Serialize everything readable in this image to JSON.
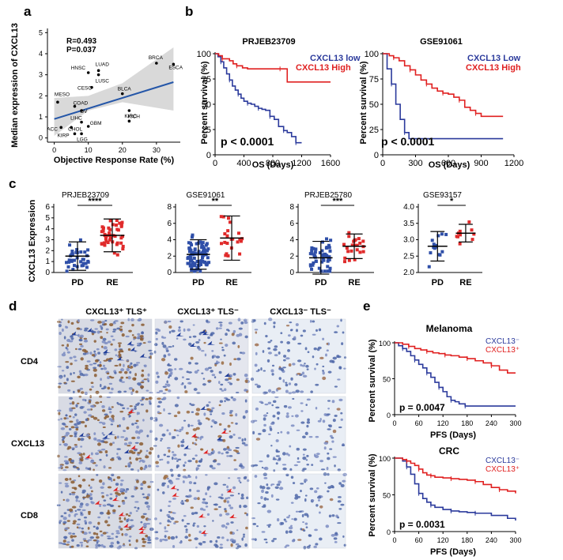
{
  "panel_labels": {
    "a": "a",
    "b": "b",
    "c": "c",
    "d": "d",
    "e": "e"
  },
  "colors": {
    "blue": "#2b3a9c",
    "red": "#e02020",
    "band": "#d9d9d9",
    "fit": "#2456a8",
    "rowblue": "#2f4fa8",
    "rowred": "#e02b2b"
  },
  "panel_a": {
    "stats_r": "R=0.493",
    "stats_p": "P=0.037",
    "xlabel": "Objective Response Rate (%)",
    "ylabel": "Median expression of CXCL13",
    "xticks": [
      "0",
      "10",
      "20",
      "30"
    ],
    "yticks": [
      "0",
      "1",
      "2",
      "3",
      "4",
      "5"
    ]
  },
  "panel_b": {
    "ylabel": "Percent survival (%)",
    "xlabel": "OS (Days)",
    "left": {
      "title": "PRJEB23709",
      "legend_low": "CXCL13 low",
      "legend_high": "CXCL13 High",
      "pval": "p < 0.0001",
      "xticks": [
        "0",
        "400",
        "800",
        "1200",
        "1600"
      ],
      "yticks": [
        "0",
        "25",
        "50",
        "75",
        "100"
      ]
    },
    "right": {
      "title": "GSE91061",
      "legend_low": "CXCL13 Low",
      "legend_high": "CXCL13 High",
      "pval": "p < 0.0001",
      "xticks": [
        "0",
        "300",
        "600",
        "900",
        "1200"
      ],
      "yticks": [
        "0",
        "25",
        "50",
        "75",
        "100"
      ]
    }
  },
  "panel_c": {
    "ylabel": "CXCL13 Expression",
    "plots": [
      {
        "title": "PRJEB23709",
        "sig": "****",
        "groups": [
          "PD",
          "RE"
        ],
        "yticks": [
          "0",
          "1",
          "2",
          "3",
          "4",
          "5",
          "6"
        ]
      },
      {
        "title": "GSE91061",
        "sig": "**",
        "groups": [
          "PD",
          "RE"
        ],
        "yticks": [
          "0",
          "2",
          "4",
          "6",
          "8"
        ]
      },
      {
        "title": "PRJEB25780",
        "sig": "***",
        "groups": [
          "PD",
          "RE"
        ],
        "yticks": [
          "0",
          "2",
          "4",
          "6",
          "8"
        ]
      },
      {
        "title": "GSE93157",
        "sig": "*",
        "groups": [
          "PD",
          "RE"
        ],
        "yticks": [
          "2.0",
          "2.5",
          "3.0",
          "3.5",
          "4.0"
        ]
      }
    ]
  },
  "panel_d": {
    "col_headers": [
      "CXCL13⁺ TLS⁺",
      "CXCL13⁺ TLS⁻",
      "CXCL13⁻ TLS⁻"
    ],
    "row_labels": [
      "CD4",
      "CXCL13",
      "CD8"
    ]
  },
  "panel_e": {
    "ylabel": "Percent survival (%)",
    "xlabel": "PFS (Days)",
    "melanoma": {
      "title": "Melanoma",
      "legend_neg": "CXCL13⁻",
      "legend_pos": "CXCL13⁺",
      "pval": "p = 0.0047",
      "xticks": [
        "0",
        "60",
        "120",
        "180",
        "240",
        "300"
      ],
      "yticks": [
        "0",
        "50",
        "100"
      ]
    },
    "crc": {
      "title": "CRC",
      "legend_neg": "CXCL13⁻",
      "legend_pos": "CXCL13⁺",
      "pval": "p = 0.0031",
      "xticks": [
        "0",
        "60",
        "120",
        "180",
        "240",
        "300"
      ],
      "yticks": [
        "0",
        "50",
        "100"
      ]
    }
  },
  "chart_data": [
    {
      "type": "scatter",
      "panel": "a",
      "title": "",
      "xlabel": "Objective Response Rate (%)",
      "ylabel": "Median expression of CXCL13",
      "xlim": [
        -2,
        37
      ],
      "ylim": [
        -0.2,
        5.2
      ],
      "points": [
        {
          "label": "BRCA",
          "x": 30,
          "y": 3.55
        },
        {
          "label": "ESCA",
          "x": 35,
          "y": 3.5
        },
        {
          "label": "LUAD",
          "x": 13,
          "y": 3.2
        },
        {
          "label": "HNSC",
          "x": 10,
          "y": 3.1
        },
        {
          "label": "LUSC",
          "x": 13,
          "y": 3.0
        },
        {
          "label": "CESC",
          "x": 11,
          "y": 2.4
        },
        {
          "label": "BLCA",
          "x": 20,
          "y": 2.1
        },
        {
          "label": "MESO",
          "x": 1,
          "y": 1.7
        },
        {
          "label": "COAD",
          "x": 6,
          "y": 1.5
        },
        {
          "label": "OV",
          "x": 8,
          "y": 1.3
        },
        {
          "label": "KIRC",
          "x": 22,
          "y": 1.3
        },
        {
          "label": "KICH",
          "x": 22,
          "y": 0.8
        },
        {
          "label": "LIHC",
          "x": 8,
          "y": 0.75
        },
        {
          "label": "GBM",
          "x": 10,
          "y": 0.55
        },
        {
          "label": "ACC",
          "x": 2,
          "y": 0.5
        },
        {
          "label": "CHOL",
          "x": 5,
          "y": 0.5
        },
        {
          "label": "KIRP",
          "x": 6,
          "y": 0.2
        },
        {
          "label": "LGG",
          "x": 8,
          "y": 0.2
        }
      ],
      "fit": {
        "x": [
          0,
          35
        ],
        "y": [
          0.9,
          2.65
        ]
      }
    },
    {
      "type": "line",
      "panel": "b-left",
      "title": "PRJEB23709",
      "xlabel": "OS (Days)",
      "ylabel": "Percent survival (%)",
      "xlim": [
        0,
        1600
      ],
      "ylim": [
        0,
        100
      ],
      "series": [
        {
          "name": "CXCL13 low",
          "x": [
            0,
            40,
            80,
            120,
            160,
            200,
            240,
            280,
            320,
            360,
            400,
            450,
            500,
            550,
            600,
            650,
            700,
            760,
            820,
            880,
            950,
            1000,
            1060,
            1120,
            1200
          ],
          "y": [
            100,
            97,
            92,
            86,
            80,
            74,
            68,
            64,
            60,
            56,
            53,
            51,
            50,
            48,
            46,
            45,
            44,
            38,
            35,
            28,
            24,
            22,
            18,
            12,
            12
          ]
        },
        {
          "name": "CXCL13 High",
          "x": [
            0,
            50,
            100,
            200,
            250,
            300,
            380,
            450,
            900,
            1000,
            1100,
            1600
          ],
          "y": [
            100,
            98,
            95,
            93,
            90,
            88,
            86,
            85,
            85,
            72,
            72,
            72
          ]
        }
      ]
    },
    {
      "type": "line",
      "panel": "b-right",
      "title": "GSE91061",
      "xlabel": "OS (Days)",
      "ylabel": "Percent survival (%)",
      "xlim": [
        0,
        1200
      ],
      "ylim": [
        0,
        100
      ],
      "series": [
        {
          "name": "CXCL13 Low",
          "x": [
            0,
            40,
            80,
            120,
            160,
            200,
            240,
            1100
          ],
          "y": [
            100,
            85,
            70,
            50,
            35,
            22,
            16,
            16
          ]
        },
        {
          "name": "CXCL13 High",
          "x": [
            0,
            60,
            100,
            150,
            200,
            250,
            300,
            350,
            400,
            450,
            500,
            550,
            600,
            650,
            700,
            750,
            800,
            850,
            900,
            950,
            1100
          ],
          "y": [
            100,
            98,
            96,
            93,
            88,
            84,
            79,
            74,
            70,
            66,
            63,
            61,
            60,
            57,
            54,
            47,
            44,
            41,
            38,
            38,
            38
          ]
        }
      ]
    },
    {
      "type": "scatter",
      "panel": "c1",
      "title": "PRJEB23709",
      "categories": [
        "PD",
        "RE"
      ],
      "ylim": [
        0,
        6
      ],
      "mean": [
        1.5,
        3.4
      ],
      "sd": [
        1.3,
        1.5
      ],
      "sig": "****"
    },
    {
      "type": "scatter",
      "panel": "c2",
      "title": "GSE91061",
      "categories": [
        "PD",
        "RE"
      ],
      "ylim": [
        0,
        8
      ],
      "mean": [
        2.2,
        4.2
      ],
      "sd": [
        1.8,
        2.7
      ],
      "sig": "**"
    },
    {
      "type": "scatter",
      "panel": "c3",
      "title": "PRJEB25780",
      "categories": [
        "PD",
        "RE"
      ],
      "ylim": [
        0,
        8
      ],
      "mean": [
        1.8,
        3.2
      ],
      "sd": [
        2.0,
        1.5
      ],
      "sig": "***"
    },
    {
      "type": "scatter",
      "panel": "c4",
      "title": "GSE93157",
      "categories": [
        "PD",
        "RE"
      ],
      "ylim": [
        2.0,
        4.0
      ],
      "mean": [
        2.8,
        3.2
      ],
      "sd": [
        0.45,
        0.27
      ],
      "sig": "*"
    },
    {
      "type": "line",
      "panel": "e-melanoma",
      "title": "Melanoma",
      "xlabel": "PFS (Days)",
      "ylabel": "Percent survival (%)",
      "xlim": [
        0,
        300
      ],
      "ylim": [
        0,
        100
      ],
      "series": [
        {
          "name": "CXCL13⁻",
          "x": [
            0,
            10,
            20,
            30,
            40,
            50,
            60,
            70,
            80,
            90,
            100,
            110,
            120,
            130,
            140,
            150,
            160,
            175,
            300
          ],
          "y": [
            100,
            96,
            92,
            88,
            82,
            76,
            70,
            65,
            58,
            52,
            45,
            38,
            32,
            25,
            20,
            18,
            15,
            12,
            12
          ]
        },
        {
          "name": "CXCL13⁺",
          "x": [
            0,
            20,
            35,
            50,
            65,
            80,
            95,
            110,
            125,
            140,
            160,
            180,
            200,
            220,
            240,
            260,
            280,
            300
          ],
          "y": [
            100,
            98,
            95,
            92,
            90,
            88,
            86,
            85,
            83,
            82,
            80,
            78,
            75,
            72,
            68,
            62,
            58,
            58
          ]
        }
      ]
    },
    {
      "type": "line",
      "panel": "e-crc",
      "title": "CRC",
      "xlabel": "PFS (Days)",
      "ylabel": "Percent survival (%)",
      "xlim": [
        0,
        300
      ],
      "ylim": [
        0,
        100
      ],
      "series": [
        {
          "name": "CXCL13⁻",
          "x": [
            0,
            20,
            30,
            40,
            50,
            60,
            70,
            80,
            90,
            100,
            120,
            140,
            160,
            180,
            200,
            240,
            280,
            300
          ],
          "y": [
            100,
            96,
            88,
            78,
            65,
            52,
            45,
            40,
            36,
            33,
            30,
            28,
            27,
            26,
            25,
            22,
            18,
            15
          ]
        },
        {
          "name": "CXCL13⁺",
          "x": [
            0,
            20,
            30,
            40,
            50,
            60,
            70,
            80,
            90,
            100,
            120,
            140,
            160,
            180,
            200,
            220,
            240,
            260,
            280,
            300
          ],
          "y": [
            100,
            98,
            96,
            93,
            90,
            85,
            80,
            77,
            76,
            74,
            73,
            72,
            71,
            70,
            68,
            64,
            60,
            57,
            55,
            52
          ]
        }
      ]
    }
  ]
}
